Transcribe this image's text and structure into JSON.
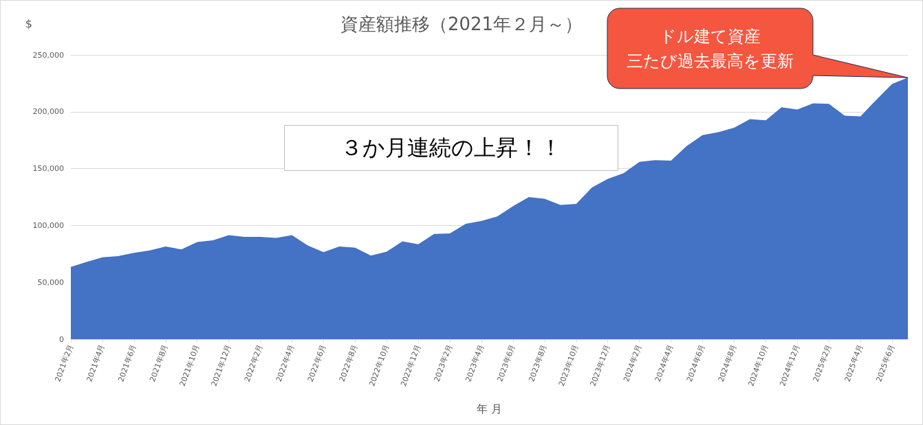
{
  "chart_data": {
    "type": "area",
    "title": "資産額推移（2021年２月～）",
    "xlabel": "年 月",
    "ylabel": "$",
    "categories": [
      "2021年2月",
      null,
      "2021年4月",
      null,
      "2021年6月",
      null,
      "2021年8月",
      null,
      "2021年10月",
      null,
      "2021年12月",
      null,
      "2022年2月",
      null,
      "2022年4月",
      null,
      "2022年6月",
      null,
      "2022年8月",
      null,
      "2022年10月",
      null,
      "2022年12月",
      null,
      "2023年2月",
      null,
      "2023年4月",
      null,
      "2023年6月",
      null,
      "2023年8月",
      null,
      "2023年10月",
      null,
      "2023年12月",
      null,
      "2024年2月",
      null,
      "2024年4月",
      null,
      "2024年6月",
      null,
      "2024年8月",
      null,
      "2024年10月",
      null,
      "2024年12月",
      null,
      "2025年2月",
      null,
      "2025年4月",
      null,
      "2025年6月",
      null
    ],
    "values": [
      63500,
      68000,
      72000,
      73000,
      76000,
      78000,
      81500,
      79000,
      85500,
      87000,
      91500,
      90000,
      90000,
      89000,
      91500,
      82500,
      76500,
      81500,
      80500,
      73500,
      77000,
      86000,
      83500,
      92500,
      93000,
      101500,
      104000,
      108000,
      117000,
      125000,
      123500,
      118000,
      119000,
      133500,
      141000,
      146000,
      156000,
      157500,
      157000,
      170000,
      179500,
      182000,
      186000,
      193500,
      192500,
      204000,
      202000,
      207500,
      207000,
      196500,
      196000,
      210500,
      224500,
      230000
    ],
    "color": "#4472c4",
    "ylim": [
      0,
      250000
    ],
    "yticks": [
      0,
      {
        "value": 50000,
        "label": "50,000"
      },
      {
        "value": 100000,
        "label": "100,000"
      },
      {
        "value": 150000,
        "label": "150,000"
      },
      {
        "value": 200000,
        "label": "200,000"
      },
      {
        "value": 250000,
        "label": "250,000"
      }
    ],
    "grid": "y",
    "annotations": [
      "３か月連続の上昇！！",
      "ドル建て資産三たび過去最高を更新"
    ]
  }
}
